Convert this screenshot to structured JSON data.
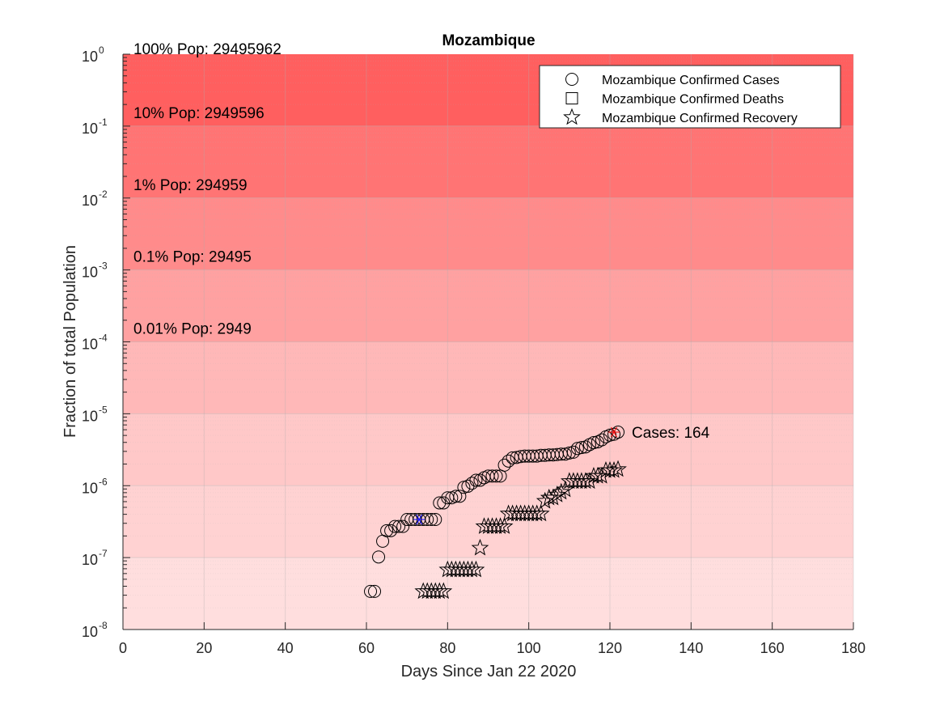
{
  "chart_data": {
    "type": "scatter",
    "title": "Mozambique",
    "xlabel": "Days Since Jan 22 2020",
    "ylabel": "Fraction of total Population",
    "xlim": [
      0,
      180
    ],
    "ylim": [
      1e-08,
      1
    ],
    "y_scale": "log",
    "x_ticks": [
      0,
      20,
      40,
      60,
      80,
      100,
      120,
      140,
      160,
      180
    ],
    "y_tick_exponents": [
      0,
      -1,
      -2,
      -3,
      -4,
      -5,
      -6,
      -7,
      -8
    ],
    "y_tick_base": "10",
    "grid": true,
    "legend_position": "top-right",
    "bands": [
      {
        "label": "100% Pop: 29495962",
        "from": 0.1,
        "to": 1,
        "color": "#ff5f5f"
      },
      {
        "label": "10% Pop: 2949596",
        "from": 0.01,
        "to": 0.1,
        "color": "#ff7474"
      },
      {
        "label": "1% Pop: 294959",
        "from": 0.001,
        "to": 0.01,
        "color": "#ff8b8b"
      },
      {
        "label": "0.1% Pop: 29495",
        "from": 0.0001,
        "to": 0.001,
        "color": "#ffa1a1"
      },
      {
        "label": "0.01% Pop: 2949",
        "from": 1e-05,
        "to": 0.0001,
        "color": "#ffb8b8"
      },
      {
        "label": "",
        "from": 1e-06,
        "to": 1e-05,
        "color": "#ffc8c8"
      },
      {
        "label": "",
        "from": 1e-07,
        "to": 1e-06,
        "color": "#ffd2d2"
      },
      {
        "label": "",
        "from": 1e-08,
        "to": 1e-07,
        "color": "#ffdede"
      }
    ],
    "series": [
      {
        "name": "Mozambique Confirmed Cases",
        "marker": "circle",
        "x": [
          61,
          62,
          63,
          64,
          65,
          66,
          67,
          68,
          69,
          70,
          71,
          72,
          73,
          74,
          75,
          76,
          77,
          78,
          79,
          80,
          81,
          82,
          83,
          84,
          85,
          86,
          87,
          88,
          89,
          90,
          91,
          92,
          93,
          94,
          95,
          96,
          97,
          98,
          99,
          100,
          101,
          102,
          103,
          104,
          105,
          106,
          107,
          108,
          109,
          110,
          111,
          112,
          113,
          114,
          115,
          116,
          117,
          118,
          119,
          120,
          121,
          122
        ],
        "y": [
          3.39e-08,
          3.39e-08,
          1.02e-07,
          1.69e-07,
          2.37e-07,
          2.37e-07,
          2.71e-07,
          2.71e-07,
          2.71e-07,
          3.39e-07,
          3.39e-07,
          3.39e-07,
          3.39e-07,
          3.39e-07,
          3.39e-07,
          3.39e-07,
          3.39e-07,
          5.76e-07,
          5.76e-07,
          6.78e-07,
          6.78e-07,
          7.12e-07,
          7.12e-07,
          9.49e-07,
          9.83e-07,
          1.08e-06,
          1.19e-06,
          1.19e-06,
          1.29e-06,
          1.36e-06,
          1.36e-06,
          1.36e-06,
          1.36e-06,
          1.93e-06,
          2.2e-06,
          2.44e-06,
          2.47e-06,
          2.54e-06,
          2.58e-06,
          2.58e-06,
          2.58e-06,
          2.58e-06,
          2.64e-06,
          2.64e-06,
          2.68e-06,
          2.68e-06,
          2.71e-06,
          2.75e-06,
          2.75e-06,
          2.85e-06,
          2.92e-06,
          3.29e-06,
          3.39e-06,
          3.46e-06,
          3.73e-06,
          3.97e-06,
          4.07e-06,
          4.34e-06,
          4.78e-06,
          5.05e-06,
          5.19e-06,
          5.56e-06
        ]
      },
      {
        "name": "Mozambique Confirmed Deaths",
        "marker": "square",
        "x": [],
        "y": []
      },
      {
        "name": "Mozambique Confirmed Recovery",
        "marker": "star",
        "x": [
          74,
          75,
          76,
          77,
          78,
          79,
          80,
          81,
          82,
          83,
          84,
          85,
          86,
          87,
          88,
          89,
          90,
          91,
          92,
          93,
          94,
          95,
          96,
          97,
          98,
          99,
          100,
          101,
          102,
          103,
          104,
          105,
          106,
          107,
          108,
          109,
          110,
          111,
          112,
          113,
          114,
          115,
          116,
          117,
          118,
          119,
          120,
          121,
          122
        ],
        "y": [
          3.39e-08,
          3.39e-08,
          3.39e-08,
          3.39e-08,
          3.39e-08,
          3.39e-08,
          6.78e-08,
          6.78e-08,
          6.78e-08,
          6.78e-08,
          6.78e-08,
          6.78e-08,
          6.78e-08,
          6.78e-08,
          1.36e-07,
          2.71e-07,
          2.71e-07,
          2.71e-07,
          2.71e-07,
          2.71e-07,
          2.71e-07,
          4.07e-07,
          4.07e-07,
          4.07e-07,
          4.07e-07,
          4.07e-07,
          4.07e-07,
          4.07e-07,
          4.07e-07,
          4.07e-07,
          6.1e-07,
          6.78e-07,
          6.78e-07,
          7.46e-07,
          8.14e-07,
          8.81e-07,
          1.15e-06,
          1.15e-06,
          1.15e-06,
          1.15e-06,
          1.15e-06,
          1.15e-06,
          1.36e-06,
          1.36e-06,
          1.36e-06,
          1.63e-06,
          1.63e-06,
          1.63e-06,
          1.69e-06
        ]
      }
    ],
    "highlight_points": [
      {
        "x": 73,
        "y": 3.39e-07,
        "color": "#0000ff"
      },
      {
        "x": 121,
        "y": 5.56e-06,
        "color": "#ff0000"
      }
    ],
    "annotations": [
      {
        "text": "Cases: 164",
        "x": 123,
        "y": 5.56e-06
      }
    ]
  }
}
